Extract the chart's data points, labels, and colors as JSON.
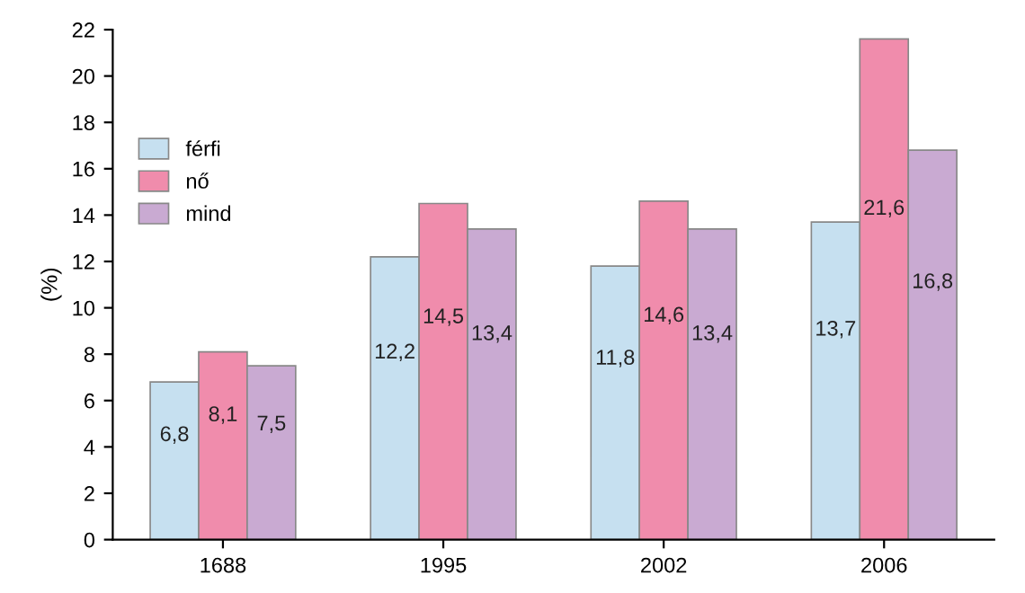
{
  "chart_data": {
    "type": "bar",
    "ylabel": "(%)",
    "categories": [
      "1688",
      "1995",
      "2002",
      "2006"
    ],
    "series": [
      {
        "name": "férfi",
        "color": "#c6e0f0",
        "values": [
          6.8,
          12.2,
          11.8,
          13.7
        ],
        "value_labels": [
          "6,8",
          "12,2",
          "11,8",
          "13,7"
        ]
      },
      {
        "name": "nő",
        "color": "#f08cac",
        "values": [
          8.1,
          14.5,
          14.6,
          21.6
        ],
        "value_labels": [
          "8,1",
          "14,5",
          "14,6",
          "21,6"
        ]
      },
      {
        "name": "mind",
        "color": "#c9aad2",
        "values": [
          7.5,
          13.4,
          13.4,
          16.8
        ],
        "value_labels": [
          "7,5",
          "13,4",
          "13,4",
          "16,8"
        ]
      }
    ],
    "ylim": [
      0,
      22
    ],
    "yticks": [
      0,
      2,
      4,
      6,
      8,
      10,
      12,
      14,
      16,
      18,
      20,
      22
    ],
    "grid": false,
    "legend": "top left"
  }
}
